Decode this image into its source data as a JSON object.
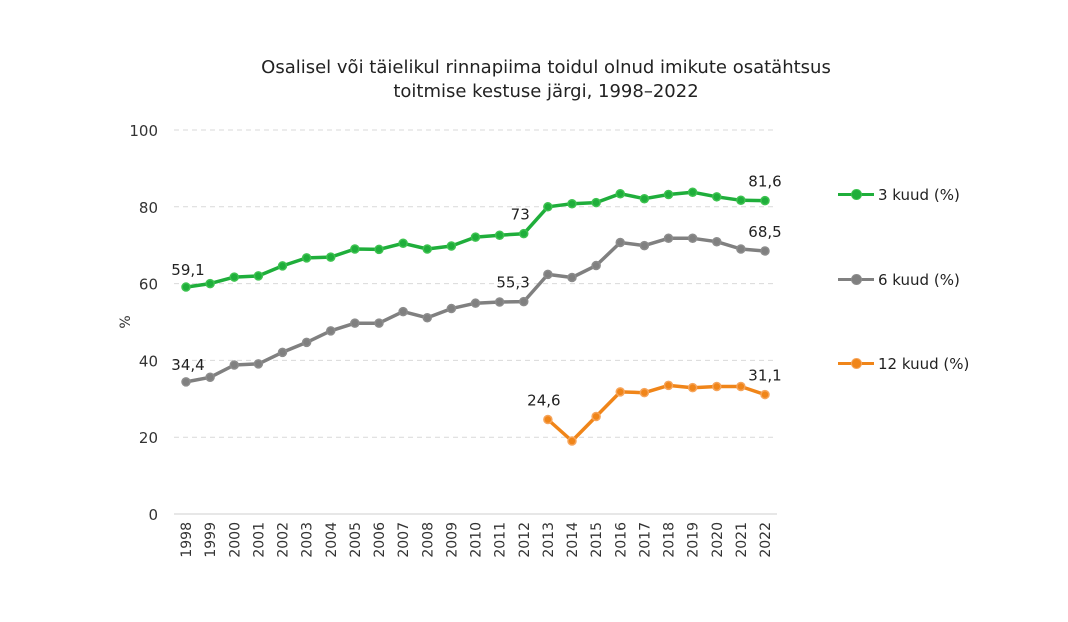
{
  "chart_data": {
    "type": "line",
    "title": "Osalisel või täielikul rinnapiima toidul olnud imikute osatähtsus toitmise kestuse järgi, 1998–2022",
    "title_lines": [
      "Osalisel või täielikul rinnapiima toidul olnud imikute osatähtsus",
      "toitmise kestuse järgi, 1998–2022"
    ],
    "xlabel": "",
    "ylabel": "%",
    "ylim": [
      0,
      100
    ],
    "yticks": [
      0,
      20,
      40,
      60,
      80,
      100
    ],
    "grid": true,
    "legend_position": "right",
    "categories": [
      "1998",
      "1999",
      "2000",
      "2001",
      "2002",
      "2003",
      "2004",
      "2005",
      "2006",
      "2007",
      "2008",
      "2009",
      "2010",
      "2011",
      "2012",
      "2013",
      "2014",
      "2015",
      "2016",
      "2017",
      "2018",
      "2019",
      "2020",
      "2021",
      "2022"
    ],
    "series": [
      {
        "name": "3 kuud (%)",
        "color": "#1fae3b",
        "marker_color": "#3cc24f",
        "values": [
          59.1,
          60.0,
          61.7,
          62.0,
          64.6,
          66.7,
          66.9,
          69.0,
          68.9,
          70.5,
          69.0,
          69.8,
          72.1,
          72.6,
          73.0,
          80.0,
          80.8,
          81.1,
          83.4,
          82.1,
          83.2,
          83.8,
          82.6,
          81.7,
          81.6
        ],
        "labels": {
          "1998": "59,1",
          "2012": "73",
          "2022": "81,6"
        }
      },
      {
        "name": "6 kuud (%)",
        "color": "#808080",
        "marker_color": "#8c8c8c",
        "values": [
          34.4,
          35.6,
          38.8,
          39.1,
          42.1,
          44.7,
          47.7,
          49.7,
          49.7,
          52.7,
          51.1,
          53.5,
          54.9,
          55.2,
          55.3,
          62.4,
          61.6,
          64.7,
          70.7,
          69.9,
          71.8,
          71.8,
          70.9,
          69.0,
          68.5
        ],
        "labels": {
          "1998": "34,4",
          "2012": "55,3",
          "2022": "68,5"
        }
      },
      {
        "name": "12 kuud (%)",
        "color": "#f08519",
        "marker_color": "#f6a45a",
        "values": [
          null,
          null,
          null,
          null,
          null,
          null,
          null,
          null,
          null,
          null,
          null,
          null,
          null,
          null,
          null,
          24.6,
          19.0,
          25.4,
          31.8,
          31.6,
          33.5,
          32.9,
          33.2,
          33.2,
          31.1
        ],
        "labels": {
          "2013": "24,6",
          "2022": "31,1"
        }
      }
    ]
  }
}
